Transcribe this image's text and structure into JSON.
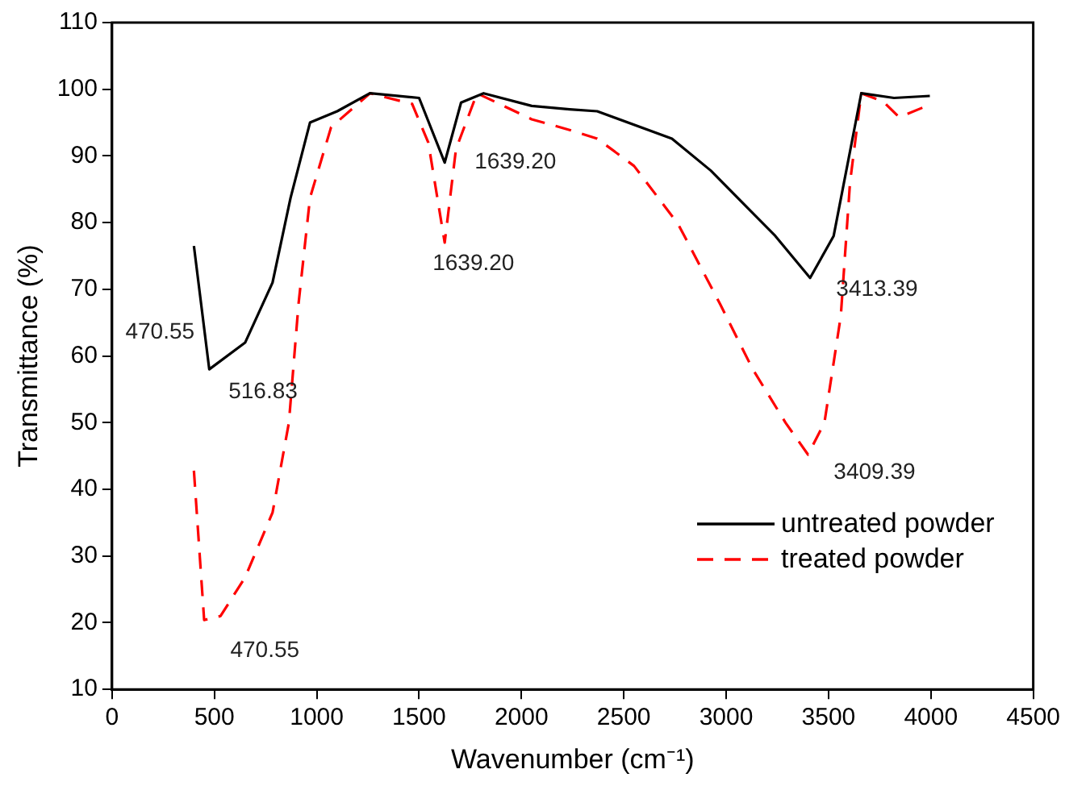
{
  "chart_data": {
    "type": "line",
    "xlabel": "Wavenumber (cm⁻¹)",
    "ylabel": "Transmittance (%)",
    "xlim": [
      0,
      4500
    ],
    "xticks": [
      0,
      500,
      1000,
      1500,
      2000,
      2500,
      3000,
      3500,
      4000,
      4500
    ],
    "ylim": [
      10,
      110
    ],
    "yticks": [
      10,
      20,
      30,
      40,
      50,
      60,
      70,
      80,
      90,
      100,
      110
    ],
    "grid": false,
    "legend": "bottom right",
    "marker": "none",
    "series": [
      {
        "name": "untreated powder",
        "color": "#000000",
        "line_style": "solid",
        "x": [
          400,
          475,
          650,
          784,
          872,
          967,
          1100,
          1260,
          1500,
          1625,
          1705,
          1815,
          2050,
          2235,
          2370,
          2735,
          2925,
          3240,
          3410,
          3525,
          3660,
          3820,
          3995
        ],
        "values": [
          76.5,
          58,
          62,
          71,
          83.7,
          95,
          96.7,
          99.4,
          98.7,
          89,
          98,
          99.4,
          97.5,
          97,
          96.7,
          92.6,
          87.8,
          78,
          71.7,
          78,
          99.4,
          98.7,
          99
        ]
      },
      {
        "name": "treated powder",
        "color": "#ff0000",
        "line_style": "dashed",
        "x": [
          400,
          450,
          530,
          650,
          784,
          864,
          911,
          967,
          1070,
          1260,
          1466,
          1545,
          1625,
          1680,
          1783,
          2050,
          2235,
          2370,
          2550,
          2765,
          2970,
          3130,
          3290,
          3400,
          3480,
          3560,
          3605,
          3660,
          3765,
          3845,
          3980
        ],
        "values": [
          42.8,
          20.4,
          21,
          26.8,
          36.5,
          50,
          67.8,
          83.7,
          94.3,
          99.4,
          97.8,
          92,
          77,
          91,
          99.4,
          95.5,
          93.9,
          92.6,
          88.5,
          79.8,
          67.8,
          58,
          50,
          45.2,
          50,
          66,
          86,
          99.4,
          98.2,
          95.8,
          97.5
        ]
      }
    ],
    "annotations": [
      {
        "text": "470.55",
        "x": 470.55,
        "y": 58
      },
      {
        "text": "516.83",
        "x": 516.83,
        "y": 58
      },
      {
        "text": "470.55",
        "x": 470.55,
        "y": 20.4
      },
      {
        "text": "1639.20",
        "x": 1639.2,
        "y": 89
      },
      {
        "text": "1639.20",
        "x": 1639.2,
        "y": 77
      },
      {
        "text": "3413.39",
        "x": 3413.39,
        "y": 71.7
      },
      {
        "text": "3409.39",
        "x": 3409.39,
        "y": 45.2
      }
    ]
  }
}
